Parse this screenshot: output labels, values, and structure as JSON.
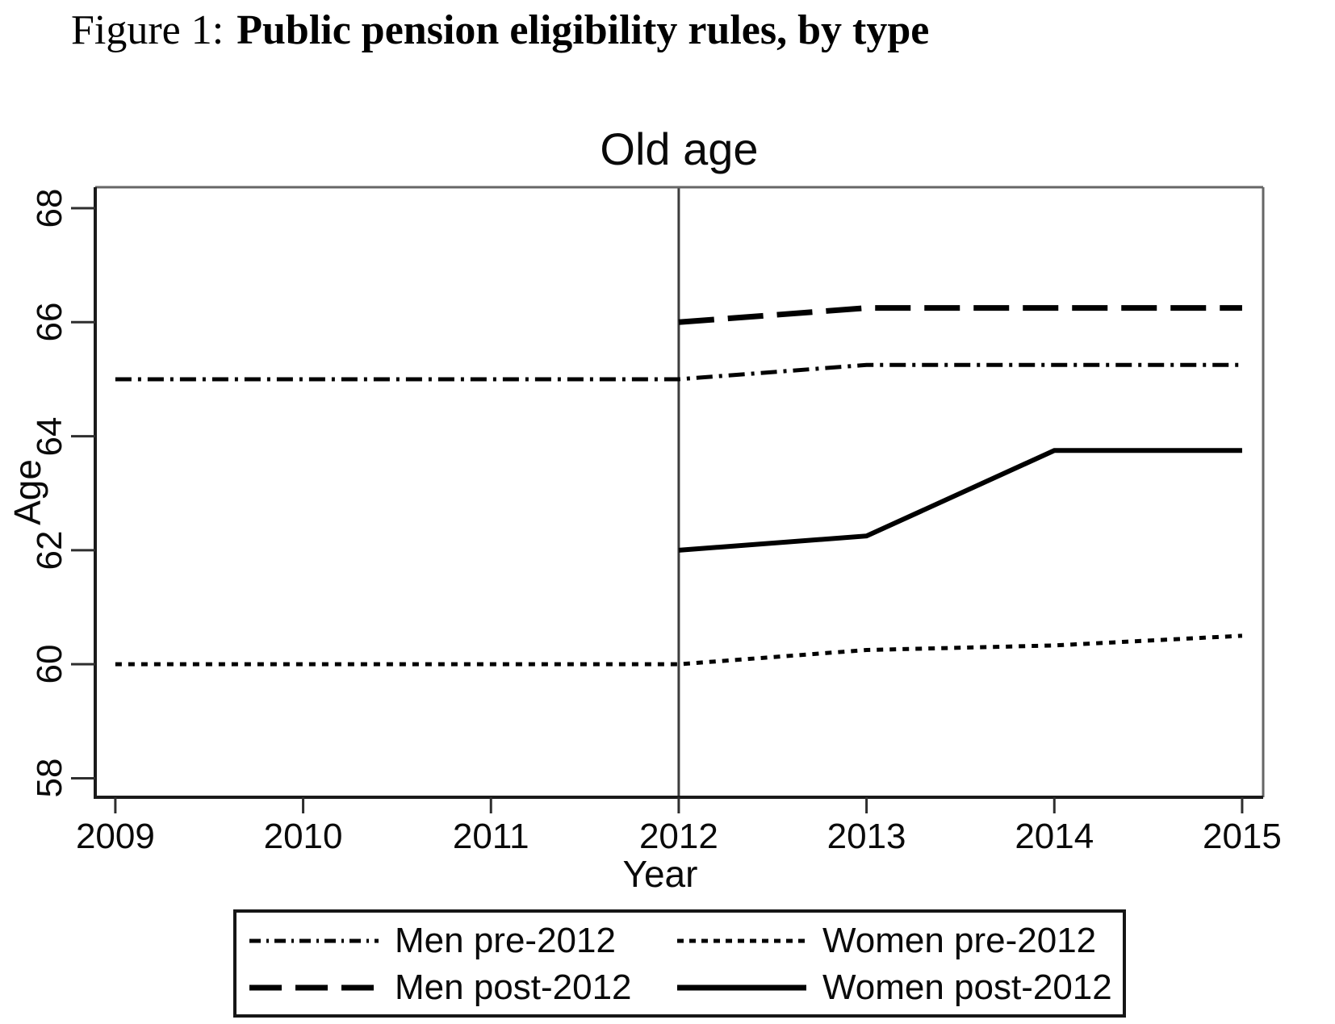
{
  "figure_title": {
    "prefix": "Figure 1:",
    "main": "Public pension eligibility rules, by type"
  },
  "chart_data": {
    "type": "line",
    "title": "Old age",
    "xlabel": "Year",
    "ylabel": "Age",
    "x_ticks": [
      2009,
      2010,
      2011,
      2012,
      2013,
      2014,
      2015
    ],
    "y_ticks": [
      58,
      60,
      62,
      64,
      66,
      68
    ],
    "xlim": [
      2008.893,
      2015.112
    ],
    "ylim": [
      57.667,
      68.368
    ],
    "reference_line_x": 2012,
    "grid": false,
    "legend_position": "bottom-center",
    "series": [
      {
        "name": "Men pre-2012",
        "style": "dashdot",
        "x": [
          2009,
          2010,
          2011,
          2012,
          2013,
          2014,
          2015
        ],
        "y": [
          65,
          65,
          65,
          65,
          65.25,
          65.25,
          65.25
        ]
      },
      {
        "name": "Women pre-2012",
        "style": "dotted",
        "x": [
          2009,
          2010,
          2011,
          2012,
          2013,
          2014,
          2015
        ],
        "y": [
          60,
          60,
          60,
          60,
          60.25,
          60.33,
          60.5
        ]
      },
      {
        "name": "Men post-2012",
        "style": "longdash",
        "x": [
          2012,
          2013,
          2014,
          2015
        ],
        "y": [
          66,
          66.25,
          66.25,
          66.25
        ]
      },
      {
        "name": "Women post-2012",
        "style": "solid",
        "x": [
          2012,
          2013,
          2014,
          2015
        ],
        "y": [
          62,
          62.25,
          63.75,
          63.75
        ]
      }
    ],
    "colors": {
      "line": "#000000",
      "plot_border": "#666666",
      "axis": "#1a1a1a",
      "tick": "#2e2e2e",
      "reference_line": "#3c3c3c",
      "text": "#000000"
    }
  },
  "legend": {
    "items": [
      "Men pre-2012",
      "Women pre-2012",
      "Men post-2012",
      "Women post-2012"
    ]
  }
}
